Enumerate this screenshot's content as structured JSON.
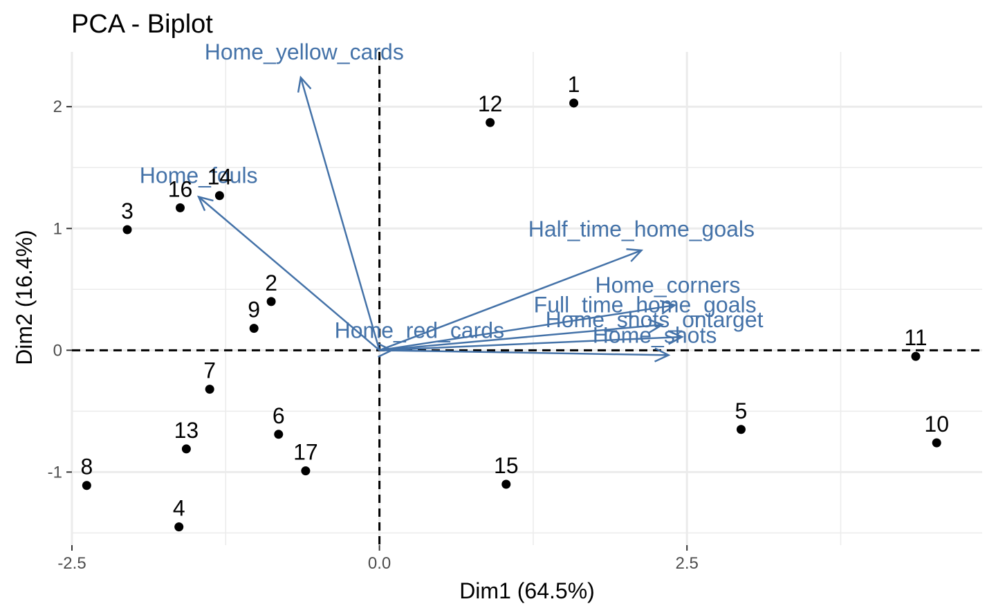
{
  "chart_data": {
    "type": "scatter",
    "title": "PCA - Biplot",
    "xlabel": "Dim1 (64.5%)",
    "ylabel": "Dim2 (16.4%)",
    "xlim": [
      -2.5,
      4.9
    ],
    "ylim": [
      -1.6,
      2.45
    ],
    "x_ticks": [
      {
        "value": -2.5,
        "label": "-2.5"
      },
      {
        "value": 0.0,
        "label": "0.0"
      },
      {
        "value": 2.5,
        "label": "2.5"
      }
    ],
    "y_ticks": [
      {
        "value": -1,
        "label": "-1"
      },
      {
        "value": 0,
        "label": "0"
      },
      {
        "value": 1,
        "label": "1"
      },
      {
        "value": 2,
        "label": "2"
      }
    ],
    "grid": true,
    "reference_lines": {
      "x": 0,
      "y": 0,
      "style": "dashed"
    },
    "colors": {
      "points": "#000000",
      "arrows": "#4472a8",
      "grid": "#ebebeb"
    },
    "individuals": [
      {
        "label": "1",
        "x": 1.58,
        "y": 2.03
      },
      {
        "label": "2",
        "x": -0.88,
        "y": 0.4
      },
      {
        "label": "3",
        "x": -2.05,
        "y": 0.99
      },
      {
        "label": "4",
        "x": -1.63,
        "y": -1.45
      },
      {
        "label": "5",
        "x": 2.94,
        "y": -0.65
      },
      {
        "label": "6",
        "x": -0.82,
        "y": -0.69
      },
      {
        "label": "7",
        "x": -1.38,
        "y": -0.32
      },
      {
        "label": "8",
        "x": -2.38,
        "y": -1.11
      },
      {
        "label": "9",
        "x": -1.02,
        "y": 0.18
      },
      {
        "label": "10",
        "x": 4.53,
        "y": -0.76
      },
      {
        "label": "11",
        "x": 4.36,
        "y": -0.05
      },
      {
        "label": "12",
        "x": 0.9,
        "y": 1.87
      },
      {
        "label": "13",
        "x": -1.57,
        "y": -0.81
      },
      {
        "label": "14",
        "x": -1.3,
        "y": 1.27
      },
      {
        "label": "15",
        "x": 1.03,
        "y": -1.1
      },
      {
        "label": "16",
        "x": -1.62,
        "y": 1.17
      },
      {
        "label": "17",
        "x": -0.6,
        "y": -0.99
      }
    ],
    "variables": [
      {
        "label": "Home_yellow_cards",
        "x": -0.64,
        "y": 2.24
      },
      {
        "label": "Home_fouls",
        "x": -1.47,
        "y": 1.26
      },
      {
        "label": "Half_time_home_goals",
        "x": 2.13,
        "y": 0.82
      },
      {
        "label": "Home_corners",
        "x": 2.4,
        "y": 0.37
      },
      {
        "label": "Full_time_home_goals",
        "x": 2.3,
        "y": 0.21
      },
      {
        "label": "Home_shots_ontarget",
        "x": 2.46,
        "y": 0.11
      },
      {
        "label": "Home_shots",
        "x": 2.35,
        "y": -0.04
      },
      {
        "label": "Home_red_cards",
        "x": 0.1,
        "y": 0.0
      }
    ]
  }
}
